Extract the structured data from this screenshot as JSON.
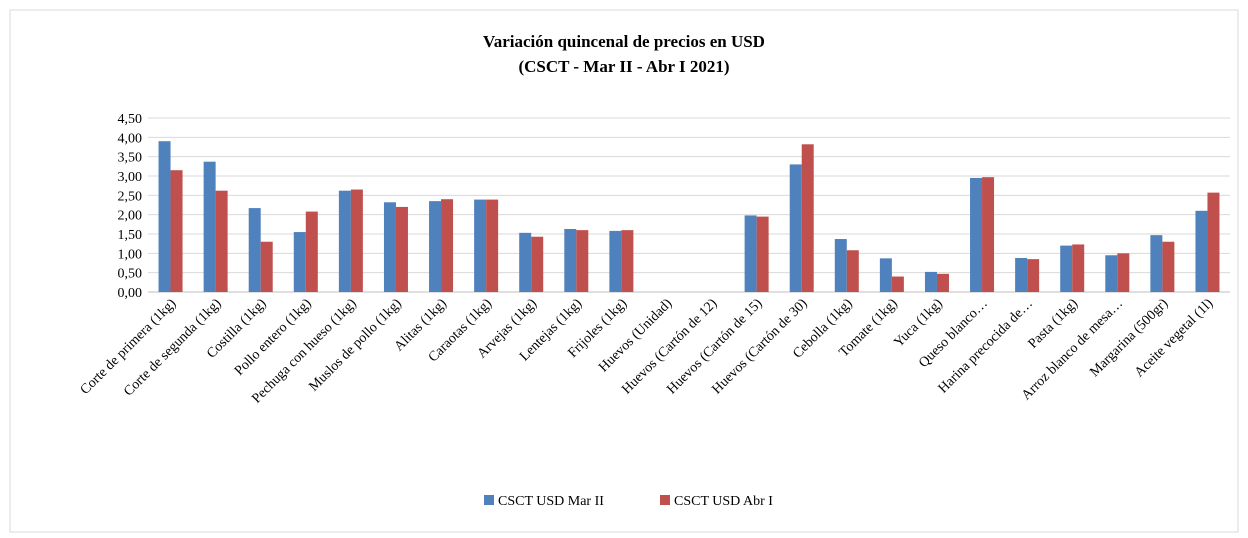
{
  "chart_data": {
    "type": "bar",
    "title": "Variación quincenal de precios en USD",
    "subtitle": "(CSCT - Mar II - Abr I 2021)",
    "categories": [
      "Corte de primera (1kg)",
      "Corte de segunda (1kg)",
      "Costilla (1kg)",
      "Pollo entero (1kg)",
      "Pechuga con hueso (1kg)",
      "Muslos de pollo (1kg)",
      "Alitas (1kg)",
      "Caraotas (1kg)",
      "Arvejas (1kg)",
      "Lentejas (1kg)",
      "Frijoles (1kg)",
      "Huevos (Unidad)",
      "Huevos (Cartón de 12)",
      "Huevos (Cartón de 15)",
      "Huevos (Cartón de 30)",
      "Cebolla (1kg)",
      "Tomate (1kg)",
      "Yuca (1kg)",
      "Queso blanco…",
      "Harina precocida de…",
      "Pasta (1kg)",
      "Arroz blanco de mesa…",
      "Margarina (500gr)",
      "Aceite vegetal (1l)"
    ],
    "series": [
      {
        "name": "CSCT USD Mar II",
        "color": "#4f81bd",
        "values": [
          3.9,
          3.37,
          2.17,
          1.55,
          2.62,
          2.32,
          2.35,
          2.39,
          1.53,
          1.63,
          1.58,
          null,
          null,
          1.98,
          3.3,
          1.37,
          0.87,
          0.52,
          2.95,
          0.88,
          1.2,
          0.95,
          1.47,
          2.1
        ]
      },
      {
        "name": "CSCT USD Abr I",
        "color": "#c0504d",
        "values": [
          3.15,
          2.62,
          1.3,
          2.08,
          2.65,
          2.2,
          2.4,
          2.39,
          1.43,
          1.6,
          1.6,
          null,
          null,
          1.95,
          3.82,
          1.08,
          0.4,
          0.47,
          2.97,
          0.85,
          1.23,
          1.0,
          1.3,
          2.57
        ]
      }
    ],
    "ylim": [
      0,
      4.5
    ],
    "yticks": [
      {
        "value": 0,
        "label": "0,00"
      },
      {
        "value": 0.5,
        "label": "0,50"
      },
      {
        "value": 1,
        "label": "1,00"
      },
      {
        "value": 1.5,
        "label": "1,50"
      },
      {
        "value": 2,
        "label": "2,00"
      },
      {
        "value": 2.5,
        "label": "2,50"
      },
      {
        "value": 3,
        "label": "3,00"
      },
      {
        "value": 3.5,
        "label": "3,50"
      },
      {
        "value": 4,
        "label": "4,00"
      },
      {
        "value": 4.5,
        "label": "4,50"
      }
    ],
    "grid": true,
    "legend": "bottom"
  }
}
